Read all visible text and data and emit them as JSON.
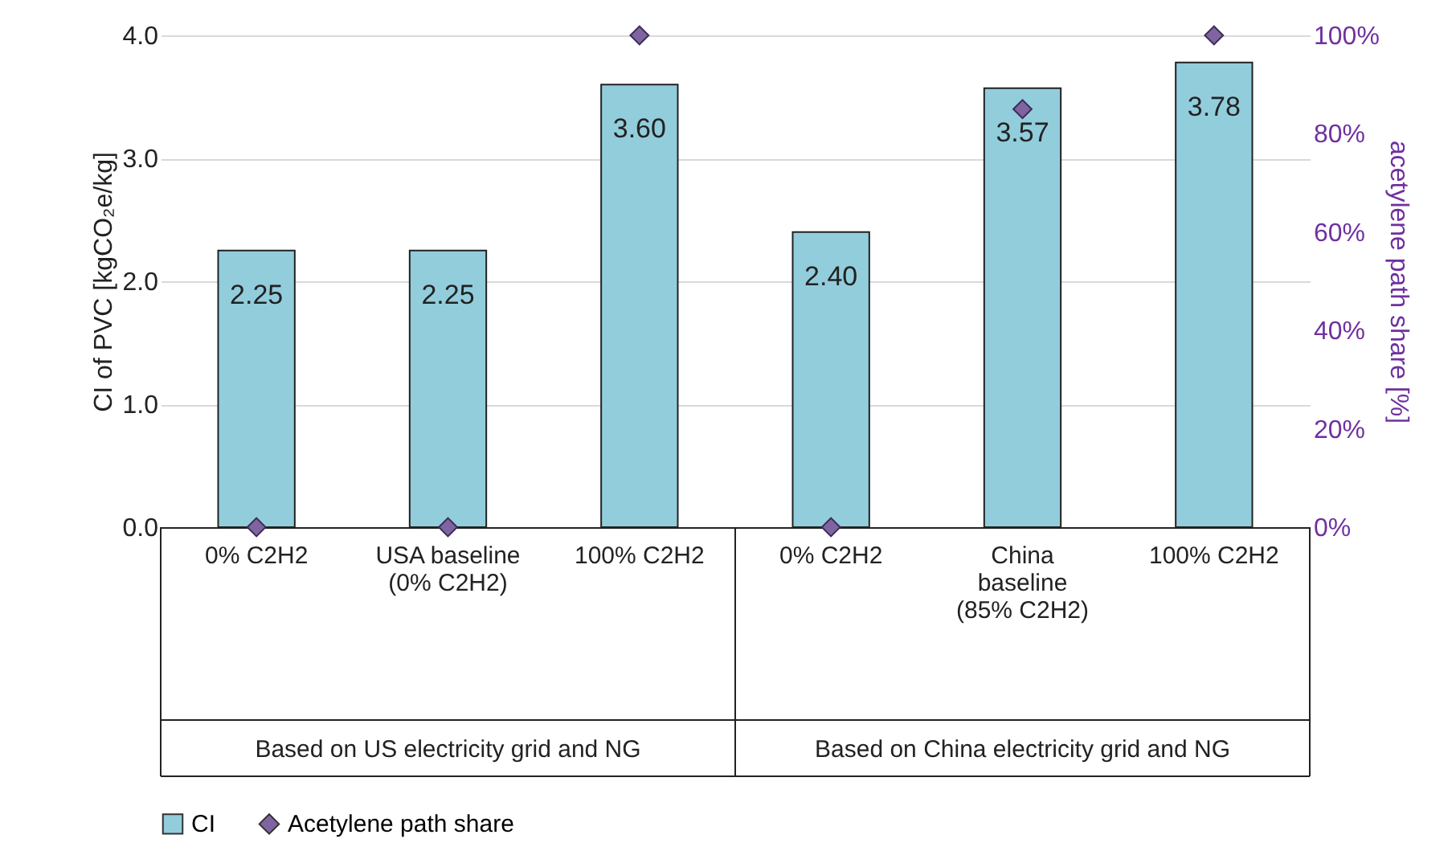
{
  "chart_data": {
    "type": "bar",
    "ylabel": "CI of PVC [kgCO₂e/kg]",
    "y2label": "acetylene path share [%]",
    "categories": [
      "0% C2H2",
      "USA baseline (0% C2H2)",
      "100% C2H2",
      "0% C2H2",
      "China baseline (85% C2H2)",
      "100% C2H2"
    ],
    "series": [
      {
        "name": "CI",
        "color": "#92cddc",
        "values": [
          2.25,
          2.25,
          3.6,
          2.4,
          3.57,
          3.78
        ],
        "value_labels": [
          "2.25",
          "2.25",
          "3.60",
          "2.40",
          "3.57",
          "3.78"
        ]
      },
      {
        "name": "Acetylene path share",
        "type": "scatter",
        "axis": "y2",
        "color": "#8064a2",
        "values": [
          0,
          0,
          100,
          0,
          85,
          100
        ]
      }
    ],
    "ylim": [
      0,
      4
    ],
    "yticks": [
      {
        "value": 0,
        "label": "0.0"
      },
      {
        "value": 1,
        "label": "1.0"
      },
      {
        "value": 2,
        "label": "2.0"
      },
      {
        "value": 3,
        "label": "3.0"
      },
      {
        "value": 4,
        "label": "4.0"
      }
    ],
    "y2lim": [
      0,
      100
    ],
    "y2ticks": [
      {
        "value": 0,
        "label": "0%"
      },
      {
        "value": 20,
        "label": "20%"
      },
      {
        "value": 40,
        "label": "40%"
      },
      {
        "value": 60,
        "label": "60%"
      },
      {
        "value": 80,
        "label": "80%"
      },
      {
        "value": 100,
        "label": "100%"
      }
    ],
    "annotations": [
      "Based on US electricity grid and NG",
      "Based on China electricity grid and NG"
    ],
    "grid": "y",
    "legend": "bottom",
    "marker": "diamond"
  }
}
